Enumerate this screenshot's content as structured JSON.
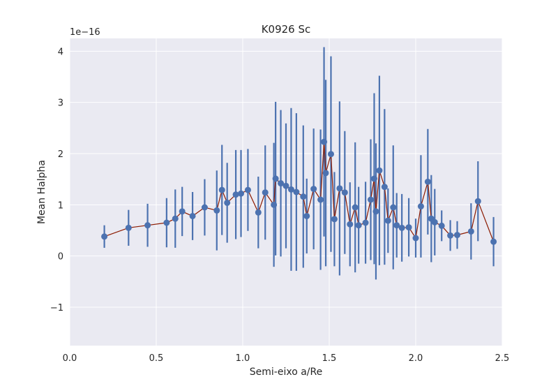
{
  "chart_data": {
    "type": "scatter",
    "title": "K0926 Sc",
    "xlabel": "Semi-eixo a/Re",
    "ylabel": "Mean Halpha",
    "y_scale_label": "1e−16",
    "xlim": [
      0.0,
      2.5
    ],
    "ylim": [
      -1.75,
      4.25
    ],
    "x_ticks": [
      0.0,
      0.5,
      1.0,
      1.5,
      2.0,
      2.5
    ],
    "x_tick_labels": [
      "0.0",
      "0.5",
      "1.0",
      "1.5",
      "2.0",
      "2.5"
    ],
    "y_ticks": [
      -1,
      0,
      1,
      2,
      3,
      4
    ],
    "y_tick_labels": [
      "−1",
      "0",
      "1",
      "2",
      "3",
      "4"
    ],
    "grid": true,
    "colors": {
      "background": "#eaeaf2",
      "grid": "#ffffff",
      "points": "#4c72b0",
      "line": "#8b1a00"
    },
    "series": [
      {
        "x": [
          0.2,
          0.34,
          0.45,
          0.56,
          0.61,
          0.65,
          0.71,
          0.78,
          0.85,
          0.88,
          0.91,
          0.96,
          0.99,
          1.03,
          1.09,
          1.13,
          1.18,
          1.19,
          1.22,
          1.25,
          1.28,
          1.31,
          1.35,
          1.37,
          1.41,
          1.45,
          1.47,
          1.48,
          1.51,
          1.53,
          1.56,
          1.59,
          1.62,
          1.65,
          1.67,
          1.71,
          1.74,
          1.76,
          1.77,
          1.79,
          1.82,
          1.84,
          1.87,
          1.89,
          1.92,
          1.96,
          2.0,
          2.03,
          2.07,
          2.09,
          2.11,
          2.15,
          2.2,
          2.24,
          2.32,
          2.36,
          2.45
        ],
        "y": [
          0.38,
          0.55,
          0.6,
          0.65,
          0.73,
          0.87,
          0.78,
          0.95,
          0.89,
          1.29,
          1.04,
          1.2,
          1.22,
          1.29,
          0.85,
          1.24,
          1.0,
          1.51,
          1.42,
          1.37,
          1.3,
          1.25,
          1.16,
          0.78,
          1.31,
          1.1,
          2.23,
          1.62,
          1.99,
          0.72,
          1.32,
          1.24,
          0.62,
          0.95,
          0.6,
          0.65,
          1.1,
          1.51,
          0.87,
          1.67,
          1.35,
          0.69,
          0.95,
          0.6,
          0.55,
          0.56,
          0.35,
          0.97,
          1.45,
          0.73,
          0.66,
          0.59,
          0.4,
          0.41,
          0.48,
          1.07,
          0.28
        ],
        "yerr": [
          0.22,
          0.35,
          0.42,
          0.48,
          0.57,
          0.48,
          0.47,
          0.55,
          0.78,
          0.88,
          0.78,
          0.87,
          0.85,
          0.8,
          0.7,
          0.92,
          1.21,
          1.5,
          1.43,
          1.22,
          1.59,
          1.54,
          1.39,
          0.73,
          1.18,
          1.37,
          1.85,
          1.82,
          1.91,
          0.92,
          1.7,
          1.2,
          0.82,
          1.27,
          0.75,
          0.8,
          1.18,
          1.67,
          1.33,
          1.85,
          1.52,
          0.63,
          1.21,
          0.63,
          0.66,
          0.57,
          0.38,
          1.0,
          1.03,
          0.85,
          0.65,
          0.3,
          0.3,
          0.27,
          0.55,
          0.78,
          0.48
        ]
      }
    ]
  }
}
